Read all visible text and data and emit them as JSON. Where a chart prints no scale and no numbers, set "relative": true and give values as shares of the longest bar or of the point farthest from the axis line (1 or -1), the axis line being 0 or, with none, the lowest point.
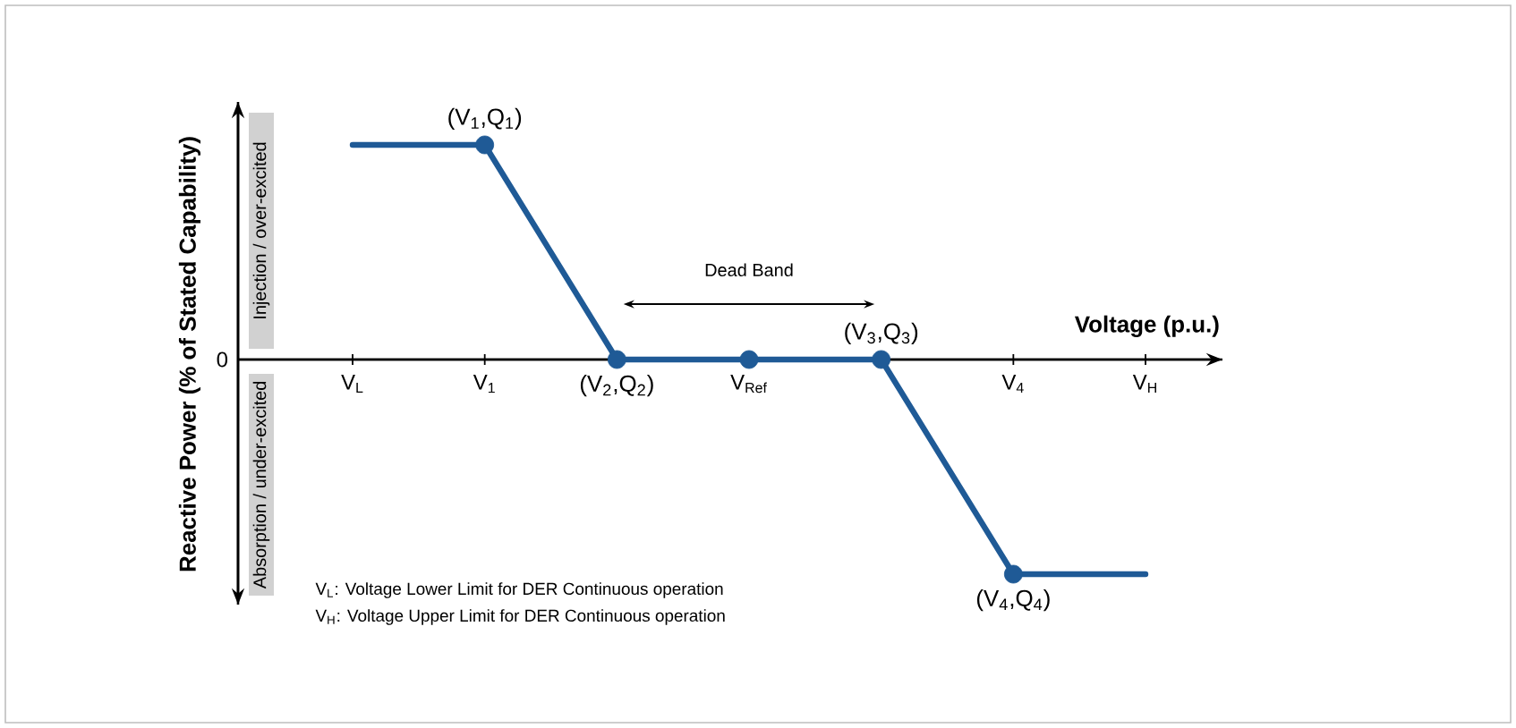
{
  "chart_data": {
    "type": "line",
    "relative": true,
    "categories": [
      "V$_{L}$",
      "V$_{1}$",
      null,
      "V$_{Ref}$",
      null,
      "V$_{4}$",
      "V$_{H}$"
    ],
    "xlabel": "Voltage (p.u.)",
    "ylabel": "Reactive Power (% of Stated Capability)",
    "series": [
      {
        "color": "#1f5a96",
        "marker": "none",
        "values": [
          1,
          1,
          0,
          0,
          0,
          -1,
          -1
        ]
      },
      {
        "type": "scatter",
        "color": "#1f5a96",
        "marker": "circle",
        "values": [
          null,
          1,
          0,
          0,
          0,
          -1,
          null
        ]
      }
    ],
    "annotations": [
      "(V$_{1}$,Q$_{1}$)",
      "(V$_{2}$,Q$_{2}$)",
      "(V$_{3}$,Q$_{3}$)",
      "(V$_{4}$,Q$_{4}$)",
      "Dead Band",
      "0",
      "Injection / over-excited",
      "Absorption / under-excited",
      "V$_{L}$: Voltage Lower Limit for DER Continuous operation",
      "V$_{H}$: Voltage Upper Limit for DER Continuous operation"
    ]
  }
}
